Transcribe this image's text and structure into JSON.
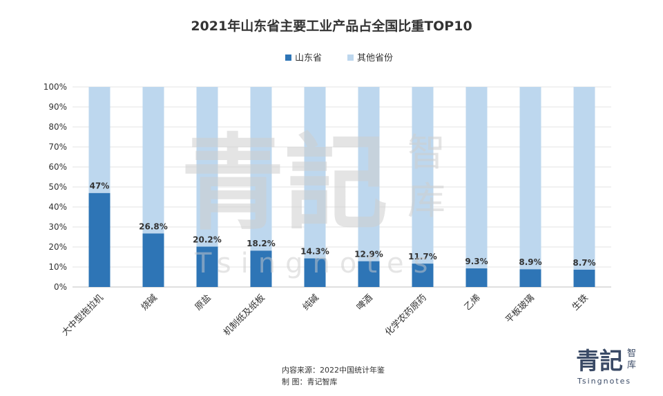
{
  "chart_data": {
    "type": "bar",
    "stacked": true,
    "title": "2021年山东省主要工业产品占全国比重TOP10",
    "legend_position": "top-center",
    "categories": [
      "大中型拖拉机",
      "烧碱",
      "原盐",
      "机制纸及纸板",
      "纯碱",
      "啤酒",
      "化学农药原药",
      "乙烯",
      "平板玻璃",
      "生铁"
    ],
    "series": [
      {
        "name": "山东省",
        "values": [
          47,
          26.8,
          20.2,
          18.2,
          14.3,
          12.9,
          11.7,
          9.3,
          8.9,
          8.7
        ],
        "color": "#2e75b6"
      },
      {
        "name": "其他省份",
        "values": [
          53,
          73.2,
          79.8,
          81.8,
          85.7,
          87.1,
          88.3,
          90.7,
          91.1,
          91.3
        ],
        "color": "#bdd7ee"
      }
    ],
    "data_labels": [
      "47%",
      "26.8%",
      "20.2%",
      "18.2%",
      "14.3%",
      "12.9%",
      "11.7%",
      "9.3%",
      "8.9%",
      "8.7%"
    ],
    "y_ticks": [
      "0%",
      "10%",
      "20%",
      "30%",
      "40%",
      "50%",
      "60%",
      "70%",
      "80%",
      "90%",
      "100%"
    ],
    "ylim": [
      0,
      100
    ],
    "grid": true
  },
  "footer": {
    "source": "内容来源：2022中国统计年鉴",
    "made_by": "制      图：青记智库"
  },
  "watermark": {
    "main": "青記",
    "sub1": "智",
    "sub2": "库",
    "latin": "Tsingnotes"
  },
  "logo": {
    "main": "青記",
    "sub1": "智",
    "sub2": "库",
    "latin": "Tsingnotes"
  }
}
